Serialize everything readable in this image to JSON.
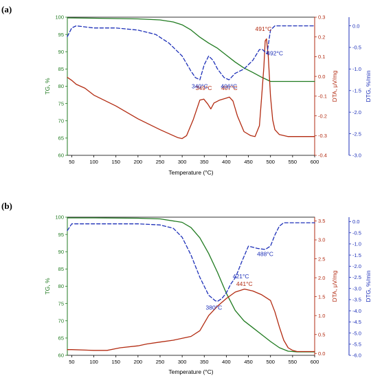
{
  "colors": {
    "tg": "#1f7a1f",
    "dta": "#b22a10",
    "dtg": "#1c2fb8",
    "axis": "#000000",
    "grid": "#d9d9d9"
  },
  "chart_data": [
    {
      "panel_label": "(a)",
      "type": "line",
      "xlabel": "Temperature (°C)",
      "xlim": [
        40,
        600
      ],
      "x_ticks": [
        50,
        100,
        150,
        200,
        250,
        300,
        350,
        400,
        450,
        500,
        550,
        600
      ],
      "axes": {
        "tg": {
          "label": "TG, %",
          "lim": [
            60,
            100
          ],
          "ticks": [
            60,
            65,
            70,
            75,
            80,
            85,
            90,
            95,
            100
          ]
        },
        "dta": {
          "label": "DTA, μV/mg",
          "lim": [
            -0.4,
            0.3
          ],
          "ticks": [
            -0.4,
            -0.3,
            -0.2,
            -0.1,
            0.0,
            0.1,
            0.2,
            0.3
          ]
        },
        "dtg": {
          "label": "DTG, %/min",
          "lim": [
            -3.0,
            0.2
          ],
          "ticks": [
            -3.0,
            -2.5,
            -2.0,
            -1.5,
            -1.0,
            -0.5,
            0.0
          ]
        }
      },
      "series": [
        {
          "name": "TG",
          "axis": "tg",
          "x": [
            40,
            100,
            200,
            250,
            280,
            300,
            320,
            340,
            360,
            380,
            400,
            420,
            440,
            460,
            480,
            490,
            500,
            550,
            600
          ],
          "y": [
            99.8,
            99.7,
            99.5,
            99.2,
            98.6,
            97.8,
            96.3,
            94.2,
            92.5,
            91.0,
            89.0,
            87.0,
            85.3,
            84.0,
            82.6,
            82.0,
            81.4,
            81.4,
            81.4
          ]
        },
        {
          "name": "DTA",
          "axis": "dta",
          "x": [
            40,
            50,
            60,
            80,
            100,
            150,
            200,
            250,
            290,
            300,
            310,
            325,
            340,
            349,
            358,
            365,
            372,
            385,
            400,
            407,
            415,
            425,
            440,
            455,
            465,
            475,
            480,
            485,
            488,
            491,
            495,
            500,
            505,
            510,
            520,
            540,
            600
          ],
          "y": [
            -0.005,
            -0.02,
            -0.04,
            -0.06,
            -0.095,
            -0.15,
            -0.215,
            -0.27,
            -0.31,
            -0.315,
            -0.3,
            -0.22,
            -0.12,
            -0.115,
            -0.14,
            -0.165,
            -0.135,
            -0.12,
            -0.11,
            -0.105,
            -0.125,
            -0.2,
            -0.28,
            -0.3,
            -0.305,
            -0.25,
            -0.1,
            0.05,
            0.18,
            0.19,
            0.1,
            -0.1,
            -0.22,
            -0.27,
            -0.295,
            -0.305,
            -0.305
          ]
        },
        {
          "name": "DTG",
          "axis": "dtg",
          "x": [
            40,
            50,
            60,
            100,
            150,
            200,
            240,
            270,
            300,
            320,
            330,
            340,
            350,
            360,
            370,
            380,
            395,
            406,
            420,
            440,
            460,
            475,
            482,
            487,
            492,
            500,
            510,
            600
          ],
          "y": [
            -0.25,
            -0.05,
            0.0,
            -0.05,
            -0.05,
            -0.1,
            -0.2,
            -0.4,
            -0.7,
            -1.05,
            -1.2,
            -1.25,
            -0.9,
            -0.7,
            -0.8,
            -1.0,
            -1.2,
            -1.25,
            -1.1,
            -1.0,
            -0.8,
            -0.55,
            -0.55,
            -0.6,
            -0.65,
            -0.1,
            0.0,
            0.0
          ]
        }
      ],
      "annotations": [
        {
          "text": "349°C",
          "series": "DTA",
          "x": 349,
          "y": -0.07
        },
        {
          "text": "407°C",
          "series": "DTA",
          "x": 407,
          "y": -0.07
        },
        {
          "text": "491°C",
          "series": "DTA",
          "x": 484,
          "y": 0.23
        },
        {
          "text": "340°C",
          "series": "DTG",
          "x": 340,
          "y": -1.45
        },
        {
          "text": "406°C",
          "series": "DTG",
          "x": 406,
          "y": -1.45
        },
        {
          "text": "492°C",
          "series": "DTG",
          "x": 510,
          "y": -0.68
        }
      ]
    },
    {
      "panel_label": "(b)",
      "type": "line",
      "xlabel": "Temperature (°C)",
      "xlim": [
        40,
        600
      ],
      "x_ticks": [
        50,
        100,
        150,
        200,
        250,
        300,
        350,
        400,
        450,
        500,
        550,
        600
      ],
      "axes": {
        "tg": {
          "label": "TG, %",
          "lim": [
            60,
            100
          ],
          "ticks": [
            60,
            65,
            70,
            75,
            80,
            85,
            90,
            95,
            100
          ]
        },
        "dta": {
          "label": "DTA, μV/mg",
          "lim": [
            -0.05,
            3.6
          ],
          "ticks": [
            0.0,
            0.5,
            1.0,
            1.5,
            2.0,
            2.5,
            3.0,
            3.5
          ]
        },
        "dtg": {
          "label": "DTG, %/min",
          "lim": [
            -6.0,
            0.2
          ],
          "ticks": [
            -6.0,
            -5.5,
            -5.0,
            -4.5,
            -4.0,
            -3.5,
            -3.0,
            -2.5,
            -2.0,
            -1.5,
            -1.0,
            -0.5,
            0.0
          ]
        }
      },
      "series": [
        {
          "name": "TG",
          "axis": "tg",
          "x": [
            40,
            100,
            200,
            250,
            300,
            320,
            340,
            360,
            380,
            400,
            420,
            440,
            460,
            480,
            500,
            520,
            540,
            560,
            600
          ],
          "y": [
            99.8,
            99.8,
            99.7,
            99.5,
            98.5,
            97.0,
            94.0,
            89.5,
            84.0,
            78.0,
            73.0,
            70.0,
            68.0,
            66.0,
            64.0,
            62.2,
            61.2,
            61.0,
            61.0
          ]
        },
        {
          "name": "DTA",
          "axis": "dta",
          "x": [
            40,
            50,
            100,
            130,
            160,
            200,
            220,
            250,
            280,
            300,
            320,
            340,
            360,
            380,
            400,
            420,
            441,
            460,
            480,
            500,
            510,
            520,
            530,
            540,
            550,
            560,
            600
          ],
          "y": [
            0.1,
            0.1,
            0.08,
            0.08,
            0.15,
            0.2,
            0.25,
            0.3,
            0.35,
            0.4,
            0.45,
            0.6,
            1.0,
            1.25,
            1.45,
            1.62,
            1.7,
            1.65,
            1.55,
            1.4,
            1.1,
            0.7,
            0.35,
            0.15,
            0.08,
            0.05,
            0.05
          ]
        },
        {
          "name": "DTG",
          "axis": "dtg",
          "x": [
            40,
            50,
            100,
            150,
            200,
            250,
            280,
            300,
            320,
            340,
            360,
            375,
            380,
            390,
            400,
            410,
            421,
            435,
            450,
            470,
            488,
            500,
            510,
            520,
            530,
            600
          ],
          "y": [
            -0.4,
            -0.1,
            -0.1,
            -0.1,
            -0.1,
            -0.15,
            -0.3,
            -0.7,
            -1.5,
            -2.5,
            -3.3,
            -3.55,
            -3.58,
            -3.45,
            -3.2,
            -2.8,
            -2.5,
            -1.8,
            -1.1,
            -1.2,
            -1.25,
            -1.1,
            -0.6,
            -0.2,
            -0.05,
            -0.05
          ]
        }
      ],
      "annotations": [
        {
          "text": "441°C",
          "series": "DTA",
          "x": 441,
          "y": 1.78
        },
        {
          "text": "421°C",
          "series": "DTG",
          "x": 433,
          "y": -2.55
        },
        {
          "text": "380°C",
          "series": "DTG",
          "x": 372,
          "y": -3.95
        },
        {
          "text": "488°C",
          "series": "DTG",
          "x": 488,
          "y": -1.55
        }
      ]
    }
  ]
}
